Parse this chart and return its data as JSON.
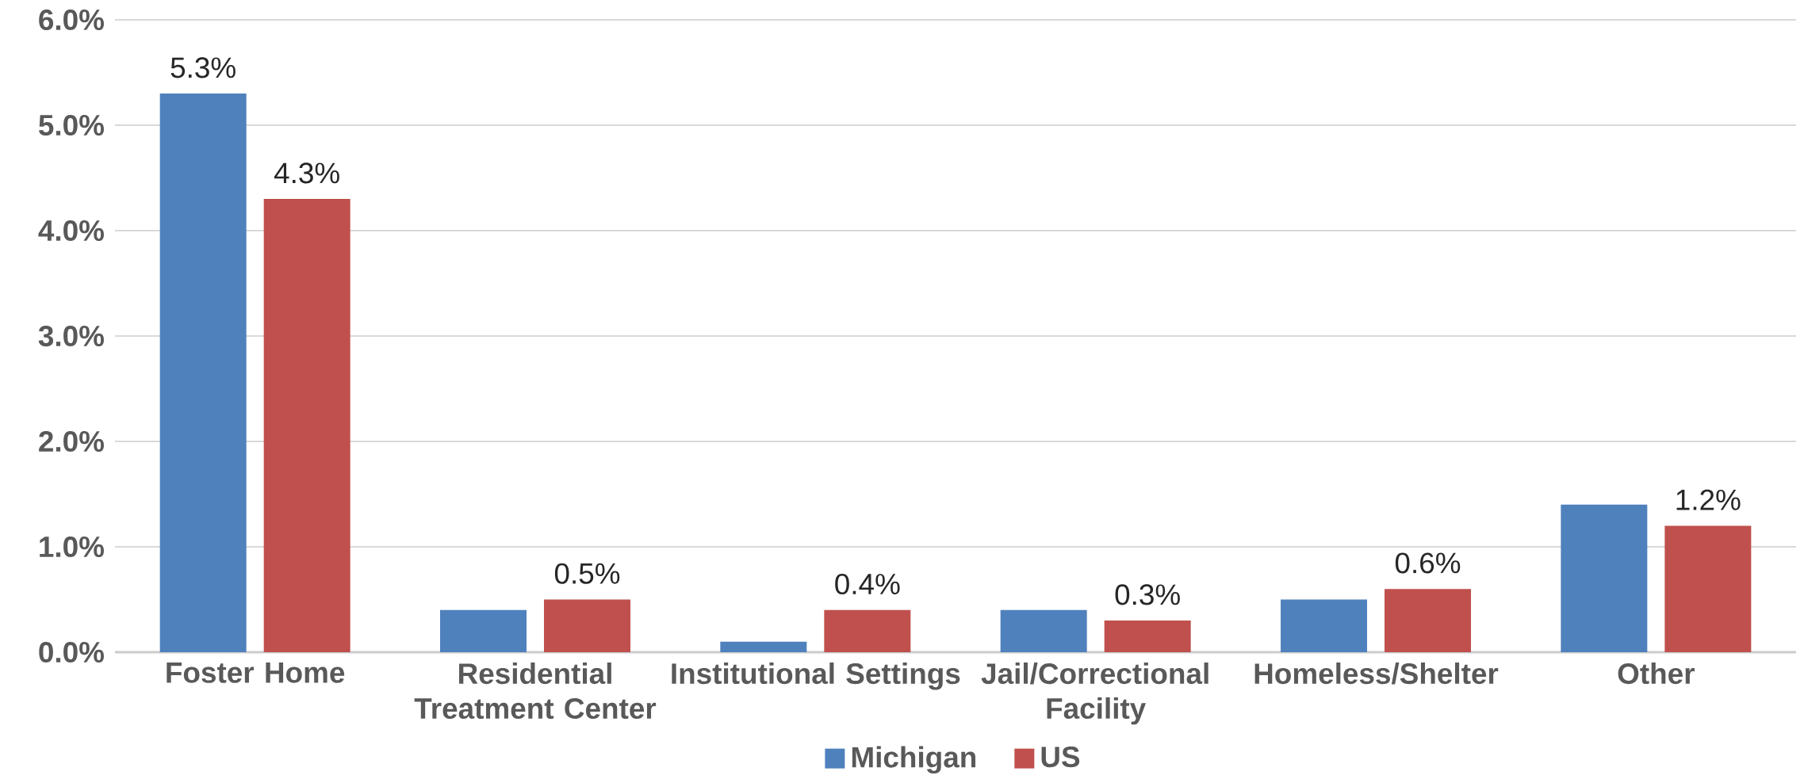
{
  "chart_data": {
    "type": "bar",
    "categories": [
      "Foster Home",
      "Residential Treatment Center",
      "Institutional Settings",
      "Jail/Correctional Facility",
      "Homeless/Shelter",
      "Other"
    ],
    "series": [
      {
        "name": "Michigan",
        "color": "#4f81bd",
        "values": [
          5.3,
          0.4,
          0.1,
          0.4,
          0.5,
          1.4
        ],
        "value_labels": [
          "5.3%",
          null,
          null,
          null,
          null,
          null
        ]
      },
      {
        "name": "US",
        "color": "#c0504d",
        "values": [
          4.3,
          0.5,
          0.4,
          0.3,
          0.6,
          1.2
        ],
        "value_labels": [
          "4.3%",
          "0.5%",
          "0.4%",
          "0.3%",
          "0.6%",
          "1.2%"
        ]
      }
    ],
    "ylim": [
      0,
      6
    ],
    "yticks": [
      {
        "value": 0,
        "label": "0.0%"
      },
      {
        "value": 1,
        "label": "1.0%"
      },
      {
        "value": 2,
        "label": "2.0%"
      },
      {
        "value": 3,
        "label": "3.0%"
      },
      {
        "value": 4,
        "label": "4.0%"
      },
      {
        "value": 5,
        "label": "5.0%"
      },
      {
        "value": 6,
        "label": "6.0%"
      }
    ],
    "grid": "y",
    "legend": "bottom"
  }
}
